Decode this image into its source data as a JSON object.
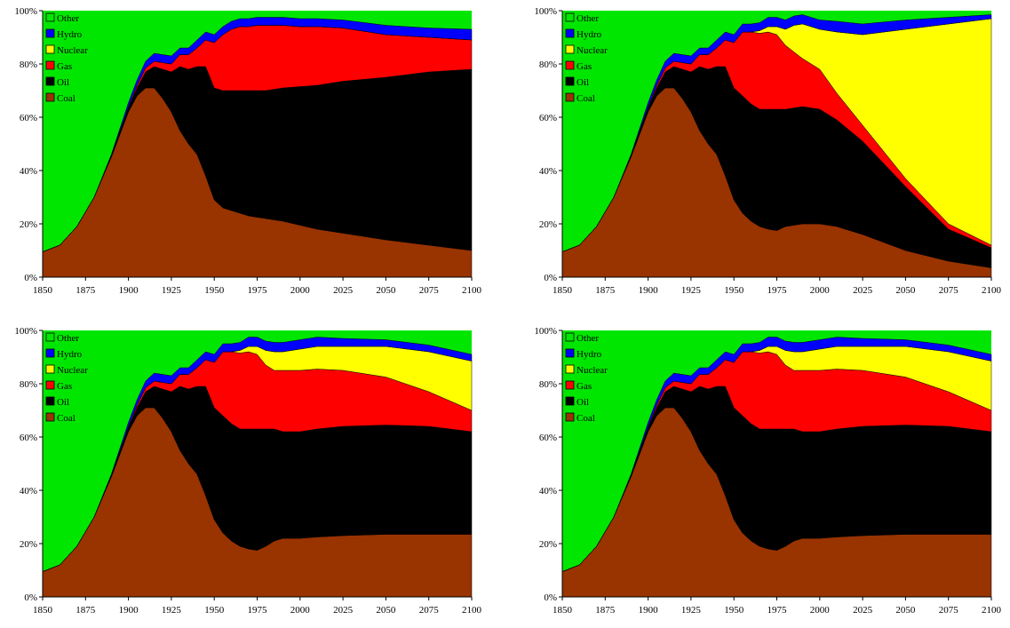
{
  "legend": [
    "Other",
    "Hydro",
    "Nuclear",
    "Gas",
    "Oil",
    "Coal"
  ],
  "colors": {
    "Coal": "#993300",
    "Oil": "#000000",
    "Gas": "#ff0000",
    "Nuclear": "#ffff00",
    "Hydro": "#0000ff",
    "Other": "#00e600"
  },
  "chart_data": [
    {
      "type": "area",
      "stacked": true,
      "percent": true,
      "x": [
        1850,
        1860,
        1870,
        1880,
        1890,
        1900,
        1905,
        1910,
        1915,
        1920,
        1925,
        1930,
        1935,
        1940,
        1945,
        1950,
        1955,
        1960,
        1965,
        1970,
        1975,
        1980,
        1985,
        1990,
        2000,
        2010,
        2025,
        2050,
        2075,
        2100
      ],
      "xlim": [
        1850,
        2100
      ],
      "ylim": [
        0,
        100
      ],
      "xticks": [
        "1850",
        "1875",
        "1900",
        "1925",
        "1950",
        "1975",
        "2000",
        "2025",
        "2050",
        "2075",
        "2100"
      ],
      "yticks": [
        "0%",
        "20%",
        "40%",
        "60%",
        "80%",
        "100%"
      ],
      "legend_position": "top-left",
      "series": [
        {
          "name": "Coal",
          "values": [
            9.5,
            12,
            19,
            30,
            45,
            62,
            68,
            71,
            71,
            67,
            62,
            55,
            50,
            46,
            38,
            29,
            26,
            25,
            24,
            23,
            22.5,
            22,
            21.5,
            21,
            19.5,
            18,
            16.5,
            14,
            12,
            10
          ]
        },
        {
          "name": "Oil",
          "values": [
            0,
            0,
            0,
            0,
            0.5,
            1.5,
            3,
            6,
            8,
            11,
            15,
            24,
            28,
            33,
            41,
            42,
            44,
            45,
            46,
            47,
            47.5,
            48,
            49,
            50,
            52,
            54,
            57,
            61,
            65,
            68
          ]
        },
        {
          "name": "Gas",
          "values": [
            0,
            0,
            0,
            0,
            0,
            0.5,
            1,
            1.5,
            2,
            2.5,
            3,
            4.5,
            5.5,
            7,
            10,
            17,
            21,
            23,
            24,
            24,
            24.5,
            24.5,
            24,
            23.5,
            22.5,
            22,
            20,
            16,
            13,
            11
          ]
        },
        {
          "name": "Nuclear",
          "values": [
            0,
            0,
            0,
            0,
            0,
            0,
            0,
            0,
            0,
            0,
            0,
            0,
            0,
            0,
            0,
            0,
            0,
            0,
            0,
            0,
            0,
            0,
            0,
            0,
            0,
            0,
            0,
            0,
            0,
            0
          ]
        },
        {
          "name": "Hydro",
          "values": [
            0,
            0,
            0,
            0,
            0.5,
            1.5,
            2,
            2.5,
            3,
            3,
            3,
            2.5,
            2.5,
            3,
            3,
            3,
            3,
            3,
            3,
            3,
            3,
            3,
            3,
            3,
            3,
            3,
            3,
            3.5,
            3.5,
            4
          ]
        }
      ]
    },
    {
      "type": "area",
      "stacked": true,
      "percent": true,
      "x": [
        1850,
        1860,
        1870,
        1880,
        1890,
        1900,
        1905,
        1910,
        1915,
        1920,
        1925,
        1930,
        1935,
        1940,
        1945,
        1950,
        1955,
        1960,
        1965,
        1970,
        1975,
        1980,
        1985,
        1990,
        2000,
        2010,
        2025,
        2050,
        2075,
        2100
      ],
      "xlim": [
        1850,
        2100
      ],
      "ylim": [
        0,
        100
      ],
      "xticks": [
        "1850",
        "1875",
        "1900",
        "1925",
        "1950",
        "1975",
        "2000",
        "2025",
        "2050",
        "2075",
        "2100"
      ],
      "yticks": [
        "0%",
        "20%",
        "40%",
        "60%",
        "80%",
        "100%"
      ],
      "legend_position": "top-left",
      "series": [
        {
          "name": "Coal",
          "values": [
            9.5,
            12,
            19,
            30,
            45,
            62,
            68,
            71,
            71,
            67,
            62,
            55,
            50,
            46,
            38,
            29,
            24,
            21,
            19,
            18,
            17.5,
            19,
            19.5,
            20,
            20,
            19,
            16,
            10,
            6,
            3.5
          ]
        },
        {
          "name": "Oil",
          "values": [
            0,
            0,
            0,
            0,
            0.5,
            1.5,
            3,
            6,
            8,
            11,
            15,
            24,
            28,
            33,
            41,
            42,
            44,
            44,
            44,
            45,
            45.5,
            44,
            44,
            44,
            43,
            40,
            35,
            24,
            12,
            7.5
          ]
        },
        {
          "name": "Gas",
          "values": [
            0,
            0,
            0,
            0,
            0,
            0.5,
            1,
            1.5,
            2,
            2.5,
            3,
            4.5,
            5.5,
            7,
            10,
            17,
            24,
            27,
            28.5,
            29,
            28,
            24,
            21,
            18,
            15,
            10,
            6,
            3,
            2,
            1
          ]
        },
        {
          "name": "Nuclear",
          "values": [
            0,
            0,
            0,
            0,
            0,
            0,
            0,
            0,
            0,
            0,
            0,
            0,
            0,
            0,
            0,
            0,
            0,
            0,
            1,
            2,
            3,
            6,
            10,
            13,
            15,
            23,
            34,
            56,
            75,
            85
          ]
        },
        {
          "name": "Hydro",
          "values": [
            0,
            0,
            0,
            0,
            0.5,
            1.5,
            2,
            2.5,
            3,
            3,
            3,
            2.5,
            2.5,
            3,
            3,
            3,
            3,
            3,
            3,
            3.5,
            3.5,
            3.5,
            3.5,
            3.5,
            3.5,
            4,
            4,
            3.5,
            2.5,
            1.5
          ]
        }
      ]
    },
    {
      "type": "area",
      "stacked": true,
      "percent": true,
      "x": [
        1850,
        1860,
        1870,
        1880,
        1890,
        1900,
        1905,
        1910,
        1915,
        1920,
        1925,
        1930,
        1935,
        1940,
        1945,
        1950,
        1955,
        1960,
        1965,
        1970,
        1975,
        1980,
        1985,
        1990,
        2000,
        2010,
        2025,
        2050,
        2075,
        2100
      ],
      "xlim": [
        1850,
        2100
      ],
      "ylim": [
        0,
        100
      ],
      "xticks": [
        "1850",
        "1875",
        "1900",
        "1925",
        "1950",
        "1975",
        "2000",
        "2025",
        "2050",
        "2075",
        "2100"
      ],
      "yticks": [
        "0%",
        "20%",
        "40%",
        "60%",
        "80%",
        "100%"
      ],
      "legend_position": "top-left",
      "series": [
        {
          "name": "Coal",
          "values": [
            9.5,
            12,
            19,
            30,
            45,
            62,
            68,
            71,
            71,
            67,
            62,
            55,
            50,
            46,
            38,
            29,
            24,
            21,
            19,
            18,
            17.5,
            19,
            21,
            22,
            22,
            22.5,
            23,
            23.5,
            23.5,
            23.5
          ]
        },
        {
          "name": "Oil",
          "values": [
            0,
            0,
            0,
            0,
            0.5,
            1.5,
            3,
            6,
            8,
            11,
            15,
            24,
            28,
            33,
            41,
            42,
            44,
            44,
            44,
            45,
            45.5,
            44,
            42,
            40,
            40,
            40.5,
            41,
            41,
            40.5,
            38.5
          ]
        },
        {
          "name": "Gas",
          "values": [
            0,
            0,
            0,
            0,
            0,
            0.5,
            1,
            1.5,
            2,
            2.5,
            3,
            4.5,
            5.5,
            7,
            10,
            17,
            24,
            27,
            28.5,
            29,
            28,
            24,
            22,
            23,
            23,
            22.5,
            21,
            18,
            13,
            8
          ]
        },
        {
          "name": "Nuclear",
          "values": [
            0,
            0,
            0,
            0,
            0,
            0,
            0,
            0,
            0,
            0,
            0,
            0,
            0,
            0,
            0,
            0,
            0,
            0,
            1,
            2,
            3,
            5.5,
            7,
            7,
            8,
            8.5,
            9,
            11.5,
            15,
            18.5
          ]
        },
        {
          "name": "Hydro",
          "values": [
            0,
            0,
            0,
            0,
            0.5,
            1.5,
            2,
            2.5,
            3,
            3,
            3,
            2.5,
            2.5,
            3,
            3,
            3,
            3,
            3,
            3,
            3.5,
            3.5,
            3.5,
            3.5,
            3.5,
            3.5,
            3.5,
            3,
            2.5,
            2.5,
            2.5
          ]
        }
      ]
    },
    {
      "type": "area",
      "stacked": true,
      "percent": true,
      "x": [
        1850,
        1860,
        1870,
        1880,
        1890,
        1900,
        1905,
        1910,
        1915,
        1920,
        1925,
        1930,
        1935,
        1940,
        1945,
        1950,
        1955,
        1960,
        1965,
        1970,
        1975,
        1980,
        1985,
        1990,
        2000,
        2010,
        2025,
        2050,
        2075,
        2100
      ],
      "xlim": [
        1850,
        2100
      ],
      "ylim": [
        0,
        100
      ],
      "xticks": [
        "1850",
        "1875",
        "1900",
        "1925",
        "1950",
        "1975",
        "2000",
        "2025",
        "2050",
        "2075",
        "2100"
      ],
      "yticks": [
        "0%",
        "20%",
        "40%",
        "60%",
        "80%",
        "100%"
      ],
      "legend_position": "top-left",
      "series": [
        {
          "name": "Coal",
          "values": [
            9.5,
            12,
            19,
            30,
            45,
            62,
            68,
            71,
            71,
            67,
            62,
            55,
            50,
            46,
            38,
            29,
            24,
            21,
            19,
            18,
            17.5,
            19,
            21,
            22,
            22,
            22.5,
            23,
            23.5,
            23.5,
            23.5
          ]
        },
        {
          "name": "Oil",
          "values": [
            0,
            0,
            0,
            0,
            0.5,
            1.5,
            3,
            6,
            8,
            11,
            15,
            24,
            28,
            33,
            41,
            42,
            44,
            44,
            44,
            45,
            45.5,
            44,
            42,
            40,
            40,
            40.5,
            41,
            41,
            40.5,
            38.5
          ]
        },
        {
          "name": "Gas",
          "values": [
            0,
            0,
            0,
            0,
            0,
            0.5,
            1,
            1.5,
            2,
            2.5,
            3,
            4.5,
            5.5,
            7,
            10,
            17,
            24,
            27,
            28.5,
            29,
            28,
            24,
            22,
            23,
            23,
            22.5,
            21,
            18,
            13,
            8
          ]
        },
        {
          "name": "Nuclear",
          "values": [
            0,
            0,
            0,
            0,
            0,
            0,
            0,
            0,
            0,
            0,
            0,
            0,
            0,
            0,
            0,
            0,
            0,
            0,
            1,
            2,
            3,
            5.5,
            7,
            7,
            8,
            8.5,
            9,
            11.5,
            15,
            18.5
          ]
        },
        {
          "name": "Hydro",
          "values": [
            0,
            0,
            0,
            0,
            0.5,
            1.5,
            2,
            2.5,
            3,
            3,
            3,
            2.5,
            2.5,
            3,
            3,
            3,
            3,
            3,
            3,
            3.5,
            3.5,
            3.5,
            3.5,
            3.5,
            3.5,
            3.5,
            3,
            2.5,
            2.5,
            2.5
          ]
        }
      ]
    }
  ]
}
